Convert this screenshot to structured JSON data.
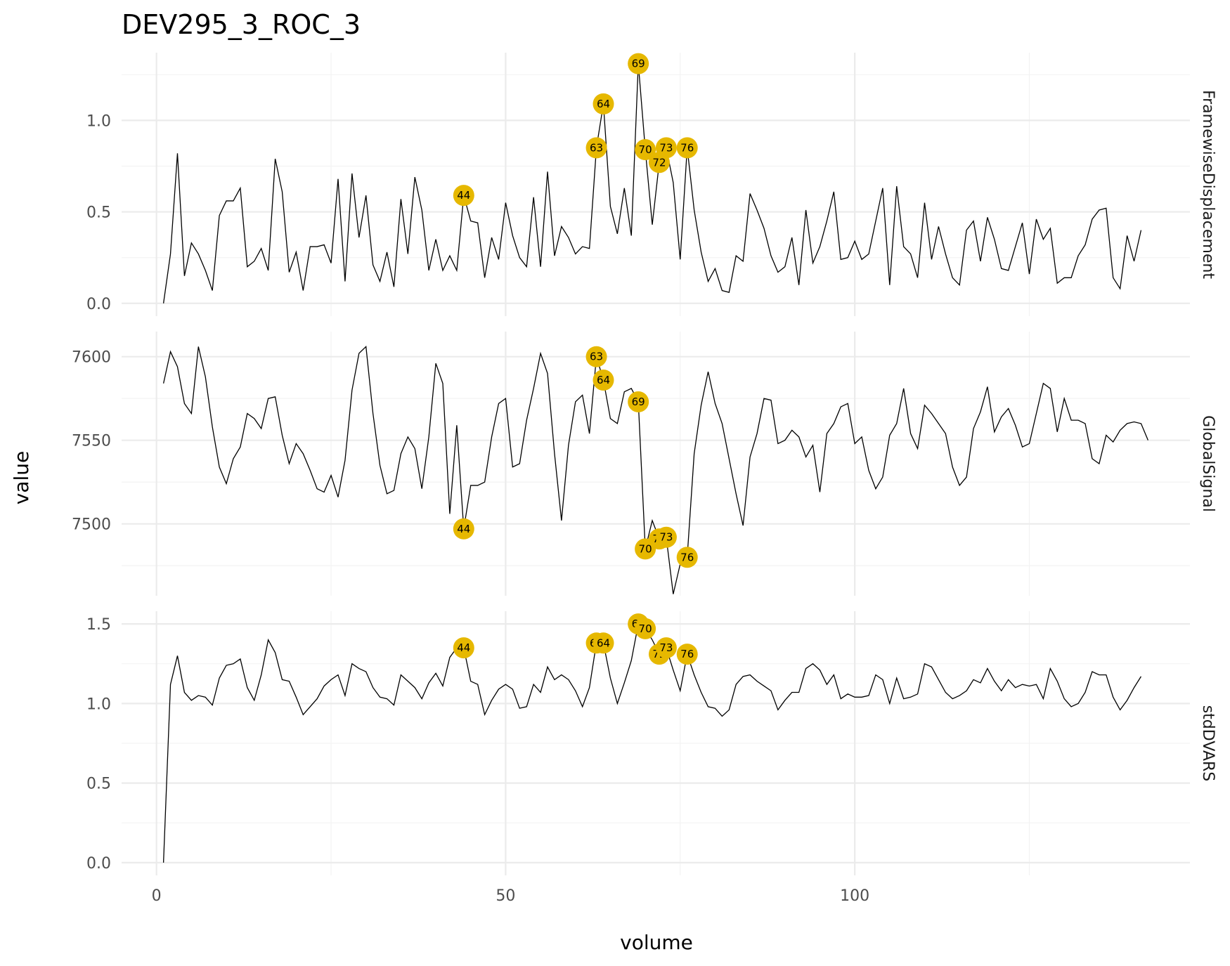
{
  "chart_data": {
    "type": "line",
    "title": "DEV295_3_ROC_3",
    "xlabel": "volume",
    "ylabel": "value",
    "xlim": [
      -5,
      148
    ],
    "x_ticks": [
      0,
      50,
      100
    ],
    "x_tick_labels": [
      "0",
      "50",
      "100"
    ],
    "highlight_color": "#E6B800",
    "facets": [
      {
        "name": "FramewiseDisplacement",
        "ylim": [
          -0.07,
          1.37
        ],
        "y_ticks": [
          0.0,
          0.5,
          1.0
        ],
        "y_tick_labels": [
          "0.0",
          "0.5",
          "1.0"
        ],
        "values": [
          0.0,
          0.27,
          0.82,
          0.15,
          0.33,
          0.27,
          0.18,
          0.07,
          0.48,
          0.56,
          0.56,
          0.63,
          0.2,
          0.23,
          0.3,
          0.18,
          0.79,
          0.61,
          0.17,
          0.28,
          0.07,
          0.31,
          0.31,
          0.32,
          0.22,
          0.68,
          0.12,
          0.71,
          0.36,
          0.59,
          0.21,
          0.12,
          0.28,
          0.09,
          0.57,
          0.27,
          0.69,
          0.51,
          0.18,
          0.35,
          0.18,
          0.26,
          0.18,
          0.59,
          0.45,
          0.44,
          0.14,
          0.36,
          0.24,
          0.55,
          0.37,
          0.25,
          0.2,
          0.58,
          0.2,
          0.72,
          0.26,
          0.42,
          0.36,
          0.27,
          0.31,
          0.3,
          0.85,
          1.09,
          0.53,
          0.38,
          0.63,
          0.37,
          1.31,
          0.84,
          0.43,
          0.77,
          0.85,
          0.66,
          0.24,
          0.85,
          0.51,
          0.28,
          0.12,
          0.19,
          0.07,
          0.06,
          0.26,
          0.23,
          0.6,
          0.51,
          0.41,
          0.26,
          0.17,
          0.2,
          0.36,
          0.1,
          0.51,
          0.22,
          0.31,
          0.45,
          0.61,
          0.24,
          0.25,
          0.34,
          0.24,
          0.27,
          0.45,
          0.63,
          0.1,
          0.64,
          0.31,
          0.27,
          0.14,
          0.55,
          0.24,
          0.42,
          0.27,
          0.14,
          0.1,
          0.4,
          0.45,
          0.23,
          0.47,
          0.35,
          0.19,
          0.18,
          0.31,
          0.44,
          0.16,
          0.46,
          0.35,
          0.41,
          0.11,
          0.14,
          0.14,
          0.26,
          0.32,
          0.46,
          0.51,
          0.52,
          0.14,
          0.08,
          0.37,
          0.23,
          0.4
        ],
        "highlights": [
          {
            "x": 44,
            "label": "44"
          },
          {
            "x": 63,
            "label": "63"
          },
          {
            "x": 64,
            "label": "64"
          },
          {
            "x": 69,
            "label": "69"
          },
          {
            "x": 70,
            "label": "70"
          },
          {
            "x": 72,
            "label": "72"
          },
          {
            "x": 73,
            "label": "73"
          },
          {
            "x": 76,
            "label": "76"
          }
        ]
      },
      {
        "name": "GlobalSignal",
        "ylim": [
          7457,
          7615
        ],
        "y_ticks": [
          7500,
          7550,
          7600
        ],
        "y_tick_labels": [
          "7500",
          "7550",
          "7600"
        ],
        "values": [
          7584,
          7603,
          7594,
          7572,
          7566,
          7606,
          7588,
          7558,
          7534,
          7524,
          7539,
          7546,
          7566,
          7563,
          7557,
          7575,
          7576,
          7553,
          7536,
          7548,
          7542,
          7532,
          7521,
          7519,
          7529,
          7516,
          7538,
          7580,
          7602,
          7606,
          7566,
          7535,
          7518,
          7520,
          7542,
          7552,
          7545,
          7521,
          7552,
          7596,
          7584,
          7506,
          7559,
          7497,
          7523,
          7523,
          7525,
          7552,
          7572,
          7575,
          7534,
          7536,
          7562,
          7581,
          7602,
          7590,
          7542,
          7502,
          7547,
          7573,
          7577,
          7554,
          7600,
          7586,
          7563,
          7560,
          7579,
          7581,
          7573,
          7485,
          7502,
          7491,
          7492,
          7458,
          7476,
          7480,
          7542,
          7571,
          7591,
          7572,
          7560,
          7539,
          7518,
          7499,
          7540,
          7554,
          7575,
          7574,
          7548,
          7550,
          7556,
          7552,
          7540,
          7547,
          7519,
          7554,
          7560,
          7570,
          7572,
          7548,
          7552,
          7532,
          7521,
          7528,
          7553,
          7560,
          7581,
          7554,
          7545,
          7571,
          7566,
          7560,
          7554,
          7534,
          7523,
          7528,
          7557,
          7567,
          7582,
          7555,
          7564,
          7569,
          7559,
          7546,
          7548,
          7566,
          7584,
          7581,
          7555,
          7575,
          7562,
          7562,
          7560,
          7539,
          7536,
          7553,
          7549,
          7556,
          7560,
          7561,
          7560,
          7550
        ],
        "highlights": [
          {
            "x": 44,
            "label": "44"
          },
          {
            "x": 63,
            "label": "63"
          },
          {
            "x": 64,
            "label": "64"
          },
          {
            "x": 69,
            "label": "69"
          },
          {
            "x": 70,
            "label": "70"
          },
          {
            "x": 72,
            "label": "72"
          },
          {
            "x": 73,
            "label": "73"
          },
          {
            "x": 76,
            "label": "76"
          }
        ]
      },
      {
        "name": "stdDVARS",
        "ylim": [
          -0.08,
          1.58
        ],
        "y_ticks": [
          0.0,
          0.5,
          1.0,
          1.5
        ],
        "y_tick_labels": [
          "0.0",
          "0.5",
          "1.0",
          "1.5"
        ],
        "values": [
          0.0,
          1.12,
          1.3,
          1.07,
          1.02,
          1.05,
          1.04,
          0.99,
          1.16,
          1.24,
          1.25,
          1.28,
          1.1,
          1.02,
          1.18,
          1.4,
          1.32,
          1.15,
          1.14,
          1.04,
          0.93,
          0.98,
          1.03,
          1.11,
          1.15,
          1.18,
          1.05,
          1.25,
          1.22,
          1.2,
          1.1,
          1.04,
          1.03,
          0.99,
          1.18,
          1.14,
          1.1,
          1.03,
          1.13,
          1.19,
          1.11,
          1.29,
          1.35,
          1.35,
          1.14,
          1.12,
          0.93,
          1.02,
          1.09,
          1.12,
          1.09,
          0.97,
          0.98,
          1.12,
          1.07,
          1.23,
          1.15,
          1.18,
          1.15,
          1.08,
          0.98,
          1.1,
          1.38,
          1.38,
          1.16,
          1.0,
          1.13,
          1.27,
          1.5,
          1.47,
          1.4,
          1.31,
          1.35,
          1.21,
          1.08,
          1.31,
          1.18,
          1.07,
          0.98,
          0.97,
          0.92,
          0.96,
          1.12,
          1.17,
          1.18,
          1.14,
          1.11,
          1.08,
          0.96,
          1.02,
          1.07,
          1.07,
          1.22,
          1.25,
          1.21,
          1.12,
          1.18,
          1.03,
          1.06,
          1.04,
          1.04,
          1.05,
          1.18,
          1.15,
          1.0,
          1.16,
          1.03,
          1.04,
          1.06,
          1.25,
          1.23,
          1.15,
          1.07,
          1.03,
          1.05,
          1.08,
          1.15,
          1.13,
          1.22,
          1.14,
          1.08,
          1.15,
          1.1,
          1.12,
          1.11,
          1.12,
          1.03,
          1.22,
          1.14,
          1.03,
          0.98,
          1.0,
          1.07,
          1.2,
          1.18,
          1.18,
          1.04,
          0.96,
          1.02,
          1.1,
          1.17
        ],
        "highlights": [
          {
            "x": 44,
            "label": "44"
          },
          {
            "x": 63,
            "label": "63"
          },
          {
            "x": 64,
            "label": "64"
          },
          {
            "x": 69,
            "label": "69"
          },
          {
            "x": 70,
            "label": "70"
          },
          {
            "x": 72,
            "label": "72"
          },
          {
            "x": 73,
            "label": "73"
          },
          {
            "x": 76,
            "label": "76"
          }
        ]
      }
    ]
  }
}
